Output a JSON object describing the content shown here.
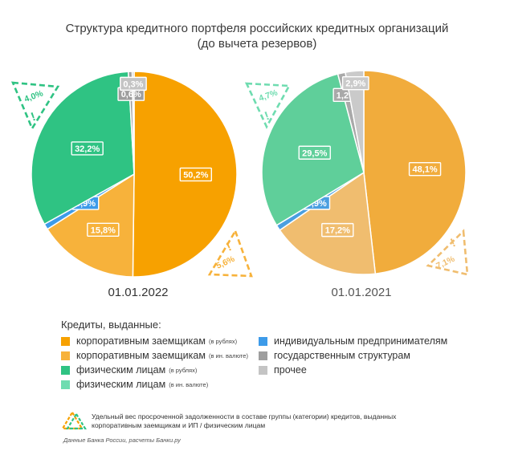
{
  "title_line1": "Структура кредитного портфеля российских кредитных организаций",
  "title_line2": "(до вычета резервов)",
  "chart_data": [
    {
      "type": "pie",
      "date_label": "01.01.2022",
      "slices": [
        {
          "name": "корпоративным заемщикам (в рублях)",
          "value": 50.2,
          "label": "50,2%",
          "color": "#f7a100"
        },
        {
          "name": "корпоративным заемщикам (в ин. валюте)",
          "value": 15.8,
          "label": "15,8%",
          "color": "#f7b23b"
        },
        {
          "name": "индивидуальным предпринимателям",
          "value": 0.9,
          "label": "0,9%",
          "color": "#3d9be9"
        },
        {
          "name": "физическим лицам (в рублях)",
          "value": 32.2,
          "label": "32,2%",
          "color": "#2fc383"
        },
        {
          "name": "государственным структурам",
          "value": 0.6,
          "label": "0,6%",
          "color": "#9e9e9e"
        },
        {
          "name": "прочее",
          "value": 0.3,
          "label": "0,3%",
          "color": "#c4c4c4"
        }
      ],
      "overdue": {
        "corporate": "5,6%",
        "individuals": "4,0%"
      }
    },
    {
      "type": "pie",
      "date_label": "01.01.2021",
      "slices": [
        {
          "name": "корпоративным заемщикам (в рублях)",
          "value": 48.1,
          "label": "48,1%",
          "color": "#f1ac3c"
        },
        {
          "name": "корпоративным заемщикам (в ин. валюте)",
          "value": 17.2,
          "label": "17,2%",
          "color": "#f0bd6f"
        },
        {
          "name": "индивидуальным предпринимателям",
          "value": 0.9,
          "label": "0,9%",
          "color": "#4a9fe0"
        },
        {
          "name": "физическим лицам (в рублях)",
          "value": 29.5,
          "label": "29,5%",
          "color": "#5fcf9a"
        },
        {
          "name": "государственным структурам",
          "value": 1.2,
          "label": "1,2%",
          "color": "#a9a9a9"
        },
        {
          "name": "прочее",
          "value": 2.9,
          "label": "2,9%",
          "color": "#cacaca"
        }
      ],
      "overdue": {
        "corporate": "7,1%",
        "individuals": "4,7%"
      }
    }
  ],
  "legend": {
    "heading": "Кредиты, выданные:",
    "items": [
      {
        "text": "корпоративным заемщикам",
        "small": "(в рублях)",
        "color": "#f7a100"
      },
      {
        "text": "корпоративным заемщикам",
        "small": "(в ин. валюте)",
        "color": "#f7b23b"
      },
      {
        "text": "физическим лицам",
        "small": "(в рублях)",
        "color": "#2fc383"
      },
      {
        "text": "физическим лицам",
        "small": "(в ин. валюте)",
        "color": "#6fdcb0"
      },
      {
        "text": "индивидуальным предпринимателям",
        "small": "",
        "color": "#3d9be9"
      },
      {
        "text": "государственным структурам",
        "small": "",
        "color": "#9e9e9e"
      },
      {
        "text": "прочее",
        "small": "",
        "color": "#c4c4c4"
      }
    ]
  },
  "note": "Удельный вес просроченной задолженности в составе группы (категории) кредитов, выданных корпоративным заемщикам и ИП / физическим лицам",
  "source": "Данные Банка России, расчеты Банки.ру"
}
